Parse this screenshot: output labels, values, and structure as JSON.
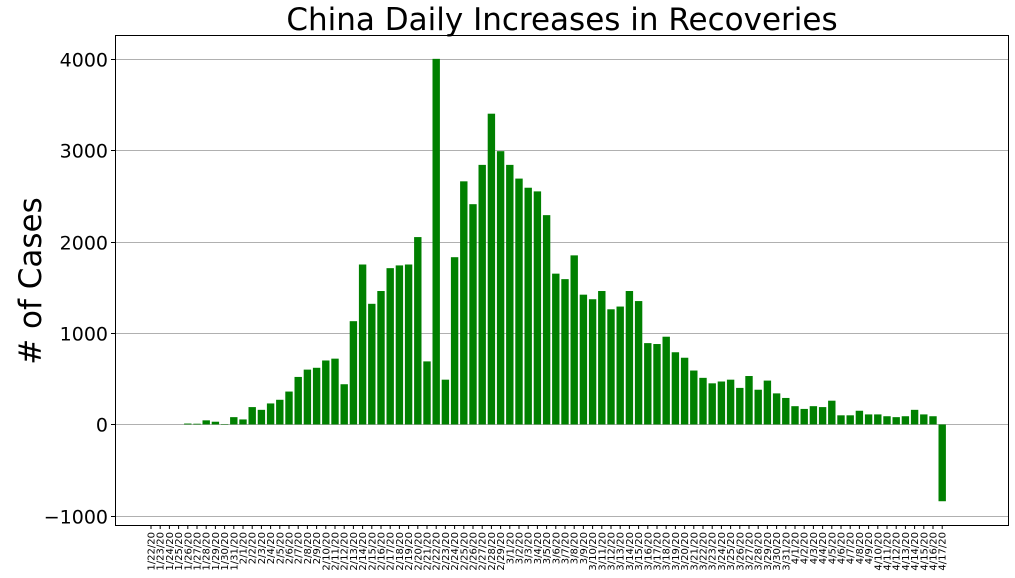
{
  "chart_data": {
    "type": "bar",
    "title": "China Daily Increases in Recoveries",
    "xlabel": "",
    "ylabel": "# of Cases",
    "ylim": [
      -1100,
      4250
    ],
    "yticks": [
      -1000,
      0,
      1000,
      2000,
      3000,
      4000
    ],
    "ytick_labels": [
      "−1000",
      "0",
      "1000",
      "2000",
      "3000",
      "4000"
    ],
    "grid": "horizontal",
    "bar_color": "#008000",
    "categories": [
      "1/22/20",
      "1/23/20",
      "1/24/20",
      "1/25/20",
      "1/26/20",
      "1/27/20",
      "1/28/20",
      "1/29/20",
      "1/30/20",
      "1/31/20",
      "2/1/20",
      "2/2/20",
      "2/3/20",
      "2/4/20",
      "2/5/20",
      "2/6/20",
      "2/7/20",
      "2/8/20",
      "2/9/20",
      "2/10/20",
      "2/11/20",
      "2/12/20",
      "2/13/20",
      "2/14/20",
      "2/15/20",
      "2/16/20",
      "2/17/20",
      "2/18/20",
      "2/19/20",
      "2/20/20",
      "2/21/20",
      "2/22/20",
      "2/23/20",
      "2/24/20",
      "2/25/20",
      "2/26/20",
      "2/27/20",
      "2/28/20",
      "2/29/20",
      "3/1/20",
      "3/2/20",
      "3/3/20",
      "3/4/20",
      "3/5/20",
      "3/6/20",
      "3/7/20",
      "3/8/20",
      "3/9/20",
      "3/10/20",
      "3/11/20",
      "3/12/20",
      "3/13/20",
      "3/14/20",
      "3/15/20",
      "3/16/20",
      "3/17/20",
      "3/18/20",
      "3/19/20",
      "3/20/20",
      "3/21/20",
      "3/22/20",
      "3/23/20",
      "3/24/20",
      "3/25/20",
      "3/26/20",
      "3/27/20",
      "3/28/20",
      "3/29/20",
      "3/30/20",
      "3/31/20",
      "4/1/20",
      "4/2/20",
      "4/3/20",
      "4/4/20",
      "4/5/20",
      "4/6/20",
      "4/7/20",
      "4/8/20",
      "4/9/20",
      "4/10/20",
      "4/11/20",
      "4/12/20",
      "4/13/20",
      "4/14/20",
      "4/15/20",
      "4/16/20",
      "4/17/20"
    ],
    "values": [
      0,
      0,
      0,
      0,
      10,
      8,
      45,
      30,
      5,
      80,
      55,
      190,
      160,
      230,
      270,
      360,
      520,
      600,
      620,
      700,
      720,
      440,
      1130,
      1750,
      1320,
      1460,
      1710,
      1740,
      1750,
      2050,
      690,
      4000,
      490,
      1830,
      2660,
      2410,
      2840,
      3400,
      2990,
      2840,
      2690,
      2590,
      2550,
      2290,
      1650,
      1590,
      1850,
      1420,
      1370,
      1460,
      1260,
      1290,
      1460,
      1350,
      890,
      880,
      960,
      790,
      730,
      590,
      510,
      450,
      470,
      490,
      400,
      530,
      380,
      480,
      340,
      290,
      200,
      170,
      200,
      190,
      260,
      100,
      100,
      150,
      110,
      110,
      90,
      80,
      90,
      160,
      110,
      90,
      -840
    ]
  }
}
